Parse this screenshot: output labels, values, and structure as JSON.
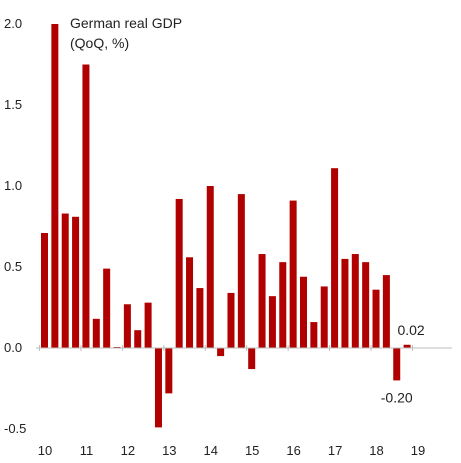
{
  "chart_data": {
    "type": "bar",
    "title": "German real GDP",
    "subtitle": "(QoQ, %)",
    "xlabel": "",
    "ylabel": "",
    "ylim": [
      -0.5,
      2.0
    ],
    "yticks": [
      "2.0",
      "1.5",
      "1.0",
      "0.5",
      "0.0",
      "-0.5"
    ],
    "ytick_values": [
      2.0,
      1.5,
      1.0,
      0.5,
      0.0,
      -0.5
    ],
    "xticks": [
      "10",
      "11",
      "12",
      "13",
      "14",
      "15",
      "16",
      "17",
      "18",
      "19"
    ],
    "grid": false,
    "legend": "none",
    "bar_color": "#B00000",
    "series": [
      {
        "values": [
          0.71,
          2.0,
          0.83,
          0.81,
          1.75,
          0.18,
          0.49,
          0.0,
          0.27,
          0.11,
          0.28,
          -0.49,
          -0.28,
          0.92,
          0.56,
          0.37,
          1.0,
          -0.05,
          0.34,
          0.95,
          -0.13,
          0.58,
          0.32,
          0.53,
          0.91,
          0.44,
          0.16,
          0.38,
          1.11,
          0.55,
          0.58,
          0.53,
          0.36,
          0.45,
          -0.2,
          0.02
        ]
      }
    ],
    "annotations": [
      {
        "text": "-0.20"
      },
      {
        "text": "0.02"
      }
    ]
  }
}
